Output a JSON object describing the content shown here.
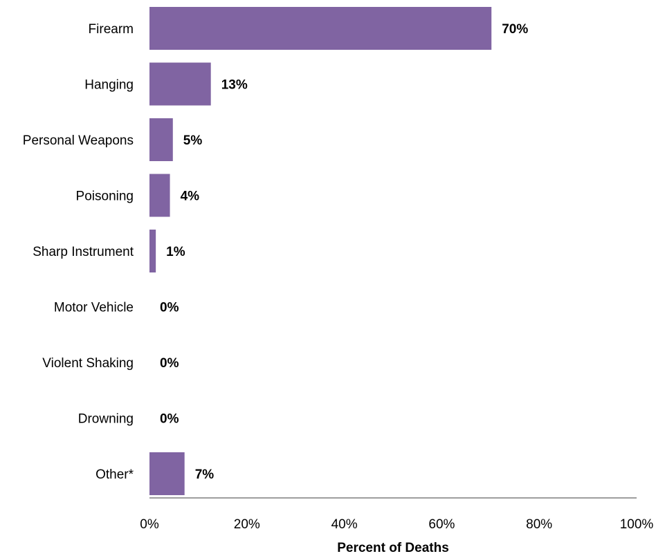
{
  "chart_data": {
    "type": "bar",
    "orientation": "horizontal",
    "categories": [
      "Firearm",
      "Hanging",
      "Personal Weapons",
      "Poisoning",
      "Sharp Instrument",
      "Motor Vehicle",
      "Violent Shaking",
      "Drowning",
      "Other*"
    ],
    "values": [
      70.2,
      12.6,
      4.8,
      4.2,
      1.3,
      0,
      0,
      0,
      7.2
    ],
    "data_labels": [
      "70%",
      "13%",
      "5%",
      "4%",
      "1%",
      "0%",
      "0%",
      "0%",
      "7%"
    ],
    "xlabel": "Percent of Deaths",
    "ylabel": "",
    "xlim": [
      0,
      100
    ],
    "x_ticks": [
      0,
      20,
      40,
      60,
      80,
      100
    ],
    "x_tick_labels": [
      "0%",
      "20%",
      "40%",
      "60%",
      "80%",
      "100%"
    ],
    "grid": false,
    "legend": "none",
    "bar_color": "#8064A2",
    "axis_color": "#7F7F7F"
  }
}
